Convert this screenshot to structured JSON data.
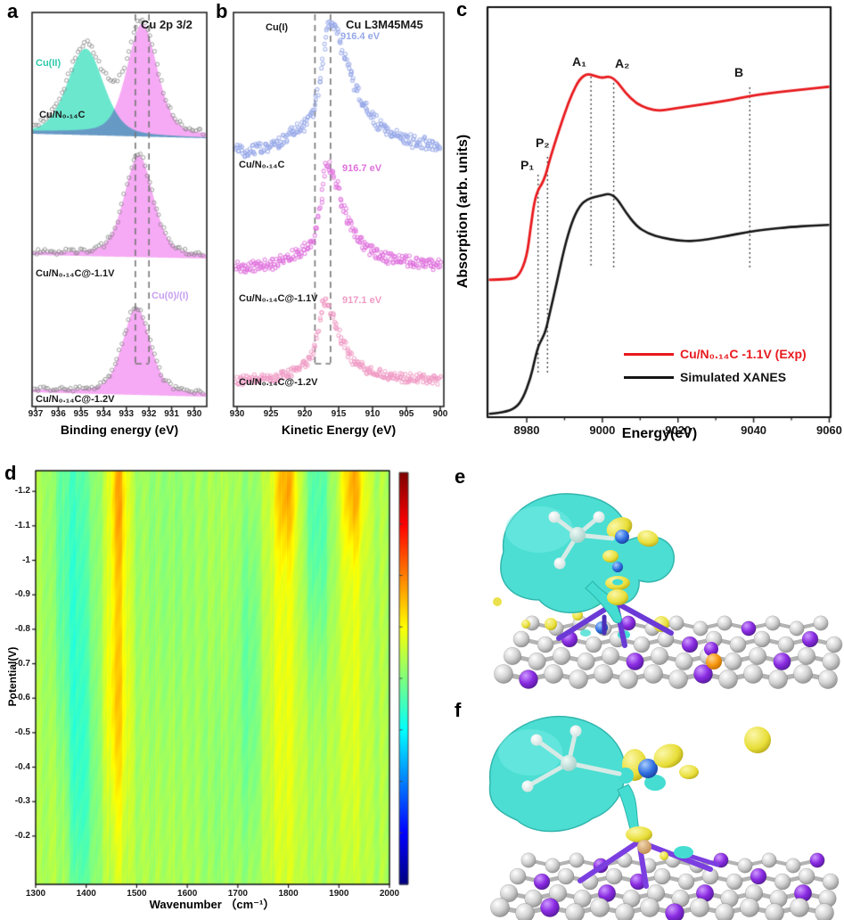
{
  "panels": {
    "e": {
      "label": "e"
    },
    "f": {
      "label": "f"
    }
  },
  "chart_data": [
    {
      "id": "a",
      "type": "area",
      "panel_label": "a",
      "title": "Cu 2p 3/2",
      "xlabel": "Binding energy (eV)",
      "x_ticks": [
        937,
        936,
        935,
        934,
        933,
        932,
        931,
        930
      ],
      "x_reversed": true,
      "dashed_guides_eV": [
        932.6,
        932.0
      ],
      "annotations": {
        "cu2_label": "Cu(II)",
        "cu2_color": "#2fc9ab",
        "cu01_label": "Cu(0)/(I)",
        "cu01_color": "#c9a0f0"
      },
      "spectra": [
        {
          "label": "Cu/N₀.₁₄C",
          "peaks": [
            {
              "assignment": "Cu(II)",
              "center_eV": 934.8,
              "fwhm_eV": 1.9,
              "rel_height": 0.78,
              "color": "#63e6cb"
            },
            {
              "assignment": "Cu(0)/(I)",
              "center_eV": 932.3,
              "fwhm_eV": 1.55,
              "rel_height": 1.0,
              "color": "#f59af2"
            }
          ]
        },
        {
          "label": "Cu/N₀.₁₄C@-1.1V",
          "peaks": [
            {
              "assignment": "Cu(0)/(I)",
              "center_eV": 932.45,
              "fwhm_eV": 1.5,
              "rel_height": 0.9,
              "color": "#f59af2"
            }
          ]
        },
        {
          "label": "Cu/N₀.₁₄C@-1.2V",
          "peaks": [
            {
              "assignment": "Cu(0)/(I)",
              "center_eV": 932.55,
              "fwhm_eV": 1.4,
              "rel_height": 0.77,
              "color": "#f59af2"
            }
          ]
        }
      ]
    },
    {
      "id": "b",
      "type": "scatter",
      "panel_label": "b",
      "title": "Cu L3M45M45",
      "xlabel": "Kinetic Energy (eV)",
      "x_ticks": [
        930,
        925,
        920,
        915,
        910,
        905,
        900
      ],
      "x_reversed": true,
      "dashed_guides_eV": [
        918.5,
        916.2
      ],
      "reference_label": "Cu(I)",
      "spectra": [
        {
          "label": "Cu/N₀.₁₄C",
          "peak_eV": 916.4,
          "peak_label": "916.4 eV",
          "color": "#96a7e8"
        },
        {
          "label": "Cu/N₀.₁₄C@-1.1V",
          "peak_eV": 916.7,
          "peak_label": "916.7 eV",
          "color": "#e070dd"
        },
        {
          "label": "Cu/N₀.₁₄C@-1.2V",
          "peak_eV": 917.1,
          "peak_label": "917.1 eV",
          "color": "#f09ac4"
        }
      ]
    },
    {
      "id": "c",
      "type": "line",
      "panel_label": "c",
      "xlabel": "Energy(eV)",
      "ylabel": "Absorption (arb. units)",
      "x_ticks": [
        8980,
        9000,
        9020,
        9040,
        9060
      ],
      "x_range": [
        8970,
        9060
      ],
      "features": [
        {
          "label": "P₁",
          "energy_eV": 8983
        },
        {
          "label": "P₂",
          "energy_eV": 8985.5
        },
        {
          "label": "A₁",
          "energy_eV": 8997
        },
        {
          "label": "A₂",
          "energy_eV": 9003
        },
        {
          "label": "B",
          "energy_eV": 9039
        }
      ],
      "series": [
        {
          "name": "Cu/N₀.₁₄C -1.1V (Exp)",
          "color": "#e8191d",
          "points": [
            [
              8970,
              0.335
            ],
            [
              8976,
              0.336
            ],
            [
              8978,
              0.345
            ],
            [
              8980,
              0.39
            ],
            [
              8981,
              0.46
            ],
            [
              8982,
              0.525
            ],
            [
              8983,
              0.555
            ],
            [
              8984,
              0.568
            ],
            [
              8985,
              0.59
            ],
            [
              8986,
              0.625
            ],
            [
              8988,
              0.685
            ],
            [
              8990,
              0.74
            ],
            [
              8992,
              0.79
            ],
            [
              8994,
              0.825
            ],
            [
              8996,
              0.838
            ],
            [
              8998,
              0.832
            ],
            [
              9000,
              0.827
            ],
            [
              9002,
              0.832
            ],
            [
              9004,
              0.818
            ],
            [
              9006,
              0.792
            ],
            [
              9009,
              0.765
            ],
            [
              9012,
              0.752
            ],
            [
              9015,
              0.747
            ],
            [
              9018,
              0.751
            ],
            [
              9022,
              0.757
            ],
            [
              9026,
              0.762
            ],
            [
              9030,
              0.768
            ],
            [
              9034,
              0.774
            ],
            [
              9039,
              0.783
            ],
            [
              9044,
              0.79
            ],
            [
              9050,
              0.796
            ],
            [
              9055,
              0.801
            ],
            [
              9060,
              0.806
            ]
          ]
        },
        {
          "name": "Simulated XANES",
          "color": "#141414",
          "points": [
            [
              8970,
              0.008
            ],
            [
              8974,
              0.012
            ],
            [
              8977,
              0.022
            ],
            [
              8979,
              0.045
            ],
            [
              8981,
              0.095
            ],
            [
              8982,
              0.135
            ],
            [
              8983,
              0.172
            ],
            [
              8984,
              0.19
            ],
            [
              8985,
              0.21
            ],
            [
              8986,
              0.25
            ],
            [
              8988,
              0.33
            ],
            [
              8990,
              0.415
            ],
            [
              8992,
              0.478
            ],
            [
              8994,
              0.516
            ],
            [
              8996,
              0.532
            ],
            [
              8998,
              0.537
            ],
            [
              9000,
              0.541
            ],
            [
              9002,
              0.546
            ],
            [
              9004,
              0.532
            ],
            [
              9006,
              0.502
            ],
            [
              9009,
              0.466
            ],
            [
              9012,
              0.448
            ],
            [
              9016,
              0.437
            ],
            [
              9020,
              0.431
            ],
            [
              9024,
              0.429
            ],
            [
              9028,
              0.434
            ],
            [
              9033,
              0.442
            ],
            [
              9038,
              0.451
            ],
            [
              9043,
              0.458
            ],
            [
              9050,
              0.464
            ],
            [
              9055,
              0.467
            ],
            [
              9060,
              0.469
            ]
          ]
        }
      ]
    },
    {
      "id": "d",
      "type": "heatmap",
      "panel_label": "d",
      "xlabel": "Wavenumber （cm⁻¹）",
      "ylabel": "Potential(V)",
      "x_ticks": [
        1300,
        1400,
        1500,
        1600,
        1700,
        1800,
        1900,
        2000
      ],
      "y_ticks": [
        -1.2,
        -1.1,
        -1,
        -0.9,
        -0.8,
        -0.7,
        -0.6,
        -0.5,
        -0.4,
        -0.3,
        -0.2
      ],
      "x_range": [
        1300,
        2000
      ],
      "y_range_top_to_bottom": [
        -1.26,
        -0.06
      ],
      "colormap": "jet",
      "baseline": 0.555,
      "bands": [
        {
          "xc": 1374,
          "xs": 27,
          "amp": -0.115,
          "yc": -0.9,
          "ys": 0.6
        },
        {
          "xc": 1388,
          "xs": 22,
          "amp": -0.055,
          "yc": -0.28,
          "ys": 0.3
        },
        {
          "xc": 1462,
          "xs": 16,
          "amp": 0.09,
          "yc": -0.8,
          "ys": 0.55
        },
        {
          "xc": 1464,
          "xs": 12,
          "amp": 0.1,
          "yc": -1.2,
          "ys": 0.18
        },
        {
          "xc": 1458,
          "xs": 18,
          "amp": 0.05,
          "yc": -0.58,
          "ys": 0.2
        },
        {
          "xc": 1790,
          "xs": 24,
          "amp": 0.065,
          "yc": -0.7,
          "ys": 0.7
        },
        {
          "xc": 1795,
          "xs": 16,
          "amp": 0.125,
          "yc": -1.22,
          "ys": 0.14
        },
        {
          "xc": 1925,
          "xs": 20,
          "amp": 0.055,
          "yc": -0.85,
          "ys": 0.65
        },
        {
          "xc": 1928,
          "xs": 15,
          "amp": 0.12,
          "yc": -1.22,
          "ys": 0.13
        },
        {
          "xc": 1857,
          "xs": 20,
          "amp": -0.1,
          "yc": -1.13,
          "ys": 0.3
        },
        {
          "xc": 1722,
          "xs": 17,
          "amp": -0.07,
          "yc": -0.68,
          "ys": 0.4
        },
        {
          "xc": 1560,
          "xs": 50,
          "amp": -0.03,
          "yc": -1.05,
          "ys": 0.45
        },
        {
          "xc": 1352,
          "xs": 15,
          "amp": 0.045,
          "yc": -0.3,
          "ys": 0.3
        },
        {
          "xc": 1660,
          "xs": 28,
          "amp": -0.028,
          "yc": -0.3,
          "ys": 0.35
        }
      ]
    }
  ]
}
